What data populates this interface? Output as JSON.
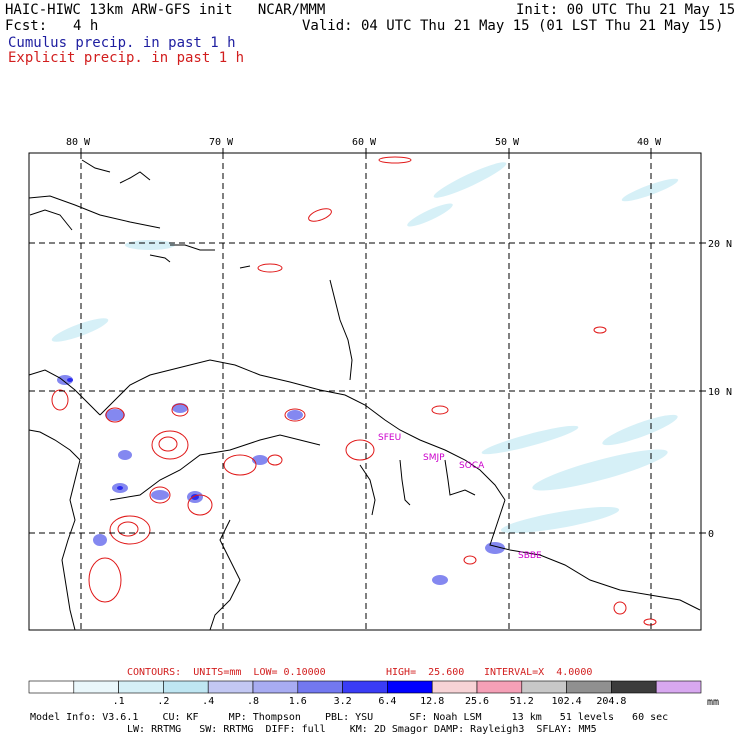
{
  "header": {
    "model_line": "HAIC-HIWC 13km ARW-GFS init   NCAR/MMM",
    "init": "Init: 00 UTC Thu 21 May 15",
    "fcst_label": "Fcst:",
    "fcst_value": "4 h",
    "valid": "Valid: 04 UTC Thu 21 May 15 (01 LST Thu 21 May 15)",
    "cumulus": "Cumulus precip. in past 1 h",
    "explicit": "Explicit precip. in past 1 h"
  },
  "map": {
    "lon_labels": [
      "80 W",
      "70 W",
      "60 W",
      "50 W",
      "40 W"
    ],
    "lat_labels": [
      "20 N",
      "10 N",
      "0"
    ],
    "stations": [
      "SFEU",
      "SMJP",
      "SOCA",
      "SBBE"
    ]
  },
  "contours": {
    "label": "CONTOURS:  UNITS=mm  LOW= 0.10000",
    "high": "HIGH=  25.600",
    "interval": "INTERVAL=X  4.0000"
  },
  "colorbar": {
    "ticks": [
      ".1",
      ".2",
      ".4",
      ".8",
      "1.6",
      "3.2",
      "6.4",
      "12.8",
      "25.6",
      "51.2",
      "102.4",
      "204.8"
    ],
    "unit": "mm",
    "colors": [
      "#ffffff",
      "#eaf7fb",
      "#d6f0f7",
      "#bfe6f2",
      "#c3c8f3",
      "#a8acf2",
      "#7378f0",
      "#3a3cf5",
      "#0000ff",
      "#f7d3d6",
      "#f5a0b7",
      "#c8c8c8",
      "#909090",
      "#3c3c3c",
      "#d8a8f0"
    ]
  },
  "model_info": {
    "line1": "Model Info: V3.6.1    CU: KF     MP: Thompson    PBL: YSU      SF: Noah LSM     13 km   51 levels   60 sec",
    "line2": "LW: RRTMG   SW: RRTMG  DIFF: full    KM: 2D Smagor DAMP: Rayleigh3  SFLAY: MM5"
  }
}
